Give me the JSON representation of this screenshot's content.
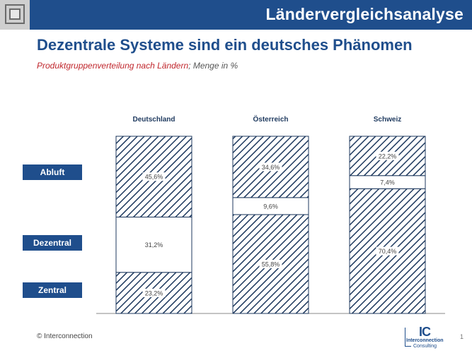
{
  "header": {
    "title": "Ländervergleichsanalyse"
  },
  "slide": {
    "heading": "Dezentrale Systeme sind ein deutsches Phänomen",
    "subtitle_main": "Produktgruppenverteilung nach Ländern",
    "subtitle_sep": ";",
    "subtitle_unit": " Menge in %"
  },
  "chart_data": {
    "type": "bar",
    "stacked": true,
    "percent": true,
    "categories": [
      "Deutschland",
      "Österreich",
      "Schweiz"
    ],
    "series": [
      {
        "name": "Zentral",
        "values": [
          23.2,
          55.8,
          70.4
        ],
        "labels": [
          "23,2%",
          "55,8%",
          "70,4%"
        ],
        "pattern": "hatched"
      },
      {
        "name": "Dezentral",
        "values": [
          31.2,
          9.6,
          7.4
        ],
        "labels": [
          "31,2%",
          "9,6%",
          "7,4%"
        ],
        "pattern": "solid"
      },
      {
        "name": "Abluft",
        "values": [
          45.6,
          34.6,
          22.2
        ],
        "labels": [
          "45,6%",
          "34,6%",
          "22,2%"
        ],
        "pattern": "hatched"
      }
    ],
    "legend_labels": [
      "Abluft",
      "Dezentral",
      "Zentral"
    ],
    "ylim": [
      0,
      100
    ],
    "colors": {
      "hatch": "#1f3a5f",
      "legend": "#1f4e8c",
      "stroke": "#1f3a5f"
    }
  },
  "footer": {
    "copyright": "© Interconnection",
    "page": "1"
  },
  "logo": {
    "initials": "IC",
    "line1": "Interconnection",
    "line2": "Consulting"
  }
}
